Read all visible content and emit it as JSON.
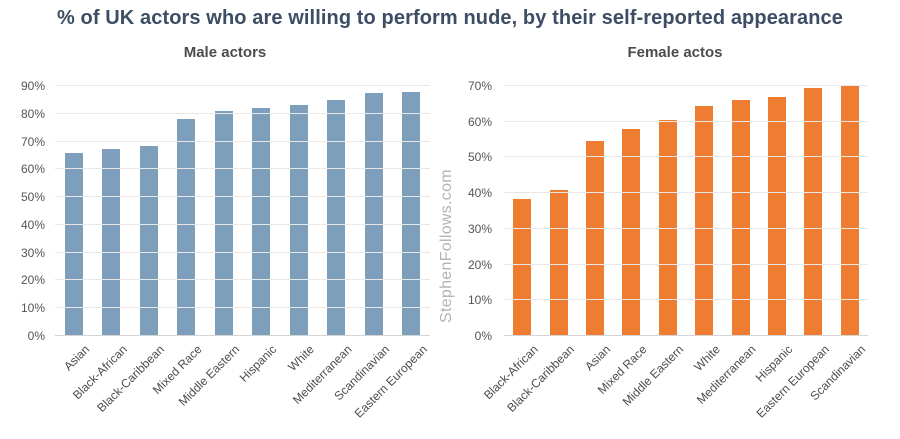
{
  "title": "% of UK actors who are willing to perform nude, by their self-reported appearance",
  "watermark": "StephenFollows.com",
  "colors": {
    "title_text": "#3D4D63",
    "subtitle_text": "#4C4C4C",
    "axis_text": "#555555",
    "gridline": "#E8E8E8",
    "baseline": "#D4D4D4",
    "male_bar": "#7D9FBB",
    "female_bar": "#EE7D31",
    "watermark_text": "#B3B3B3"
  },
  "chart_data": [
    {
      "type": "bar",
      "title": "Male actors",
      "categories": [
        "Asian",
        "Black-African",
        "Black-Caribbean",
        "Mixed Race",
        "Middle Eastern",
        "Hispanic",
        "White",
        "Mediterranean",
        "Scandinavian",
        "Eastern European"
      ],
      "values": [
        66,
        67.5,
        68.5,
        78,
        81,
        82,
        83,
        85,
        87.5,
        88
      ],
      "unit": "%",
      "xlabel": "",
      "ylabel": "",
      "ylim": [
        0,
        90
      ],
      "ytick_step": 10,
      "ytick_labels": [
        "0%",
        "10%",
        "20%",
        "30%",
        "40%",
        "50%",
        "60%",
        "70%",
        "80%",
        "90%"
      ],
      "bar_color": "#7D9FBB",
      "grid": true,
      "legend": "none"
    },
    {
      "type": "bar",
      "title": "Female actos",
      "categories": [
        "Black-African",
        "Black-Caribbean",
        "Asian",
        "Mixed Race",
        "Middle Eastern",
        "White",
        "Mediterranean",
        "Hispanic",
        "Eastern European",
        "Scandinavian"
      ],
      "values": [
        38.5,
        41,
        54.5,
        58,
        60.5,
        64.5,
        66,
        67,
        69.5,
        70
      ],
      "unit": "%",
      "xlabel": "",
      "ylabel": "",
      "ylim": [
        0,
        70
      ],
      "ytick_step": 10,
      "ytick_labels": [
        "0%",
        "10%",
        "20%",
        "30%",
        "40%",
        "50%",
        "60%",
        "70%"
      ],
      "bar_color": "#EE7D31",
      "grid": true,
      "legend": "none"
    }
  ]
}
